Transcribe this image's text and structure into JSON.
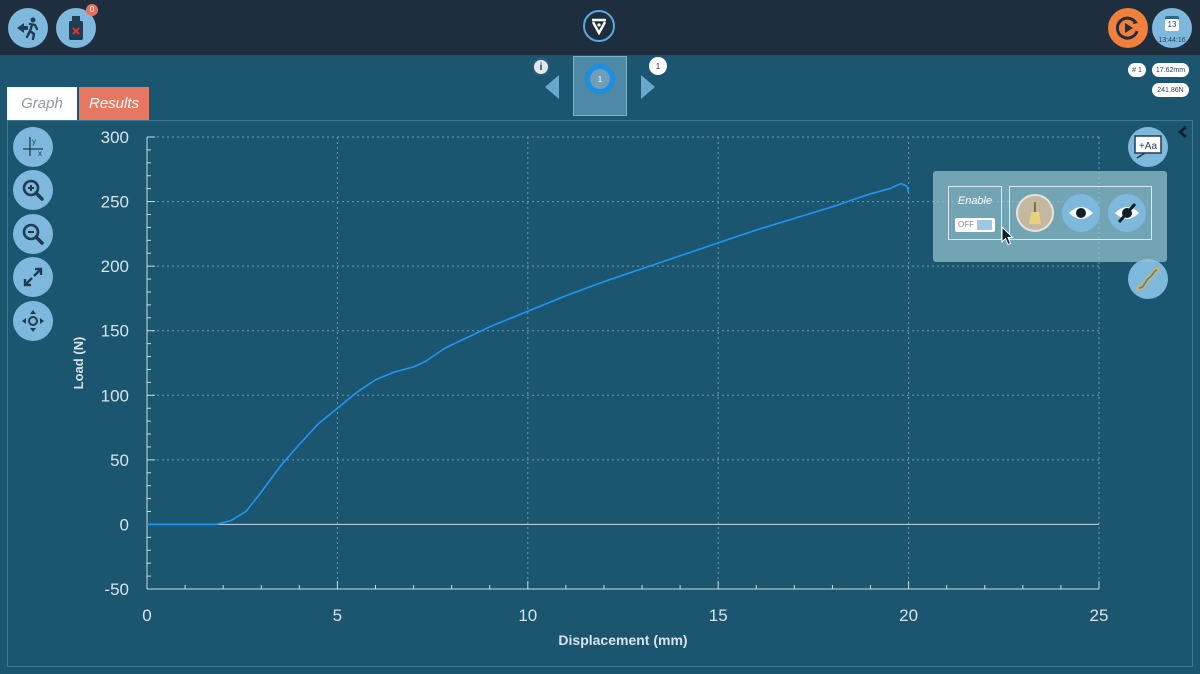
{
  "header": {
    "exit_icon": "exit-run-icon",
    "usb_icon": "usb-device-icon",
    "usb_badge": "0",
    "logo_icon": "v-logo-icon",
    "run_icon": "run-test-icon",
    "calendar": {
      "day": "13",
      "time": "13:44:16"
    }
  },
  "tabs": [
    {
      "label": "Graph",
      "active": true
    },
    {
      "label": "Results",
      "active": false
    }
  ],
  "navigator": {
    "thumb_label": "1",
    "info_label": "i",
    "count_label": "1"
  },
  "readouts": {
    "index": "# 1",
    "displacement": "17.62mm",
    "load": "241.86N"
  },
  "left_tools": [
    {
      "name": "axes-toggle-icon"
    },
    {
      "name": "zoom-in-icon"
    },
    {
      "name": "zoom-out-icon"
    },
    {
      "name": "fit-expand-icon"
    },
    {
      "name": "pan-move-icon"
    }
  ],
  "right_tools": [
    {
      "name": "add-annotation-icon",
      "label": "+Aa"
    },
    {
      "name": "curve-fit-icon"
    }
  ],
  "popup": {
    "enable_label": "Enable",
    "toggle_label": "OFF",
    "options": [
      "brush-icon",
      "show-eye-icon",
      "hide-eye-icon"
    ]
  },
  "colors": {
    "background": "#1b5570",
    "curve": "#2196f3",
    "accent_orange": "#f0803c",
    "tab_results": "#e87762"
  },
  "chart_data": {
    "type": "line",
    "xlabel": "Displacement (mm)",
    "ylabel": "Load (N)",
    "xlim": [
      0,
      25
    ],
    "ylim": [
      -50,
      300
    ],
    "xticks": [
      0,
      5,
      10,
      15,
      20,
      25
    ],
    "yticks": [
      -50,
      0,
      50,
      100,
      150,
      200,
      250,
      300
    ],
    "grid": true,
    "series": [
      {
        "x": [
          0,
          1.0,
          1.8,
          2.2,
          2.6,
          3.0,
          3.5,
          4.0,
          4.5,
          5.0,
          5.5,
          6.0,
          6.5,
          7.0,
          7.3,
          7.5,
          7.8,
          8.0,
          8.5,
          9.0,
          10.0,
          11.0,
          12.0,
          13.0,
          14.0,
          15.0,
          16.0,
          17.0,
          18.0,
          19.0,
          19.5,
          19.8,
          19.95,
          20.0
        ],
        "y": [
          0,
          0,
          0,
          3,
          10,
          25,
          45,
          62,
          78,
          90,
          102,
          112,
          118,
          122,
          126,
          130,
          136,
          139,
          146,
          153,
          165,
          177,
          188,
          198,
          208,
          218,
          228,
          237,
          246,
          256,
          260,
          264,
          262,
          257
        ]
      }
    ]
  }
}
